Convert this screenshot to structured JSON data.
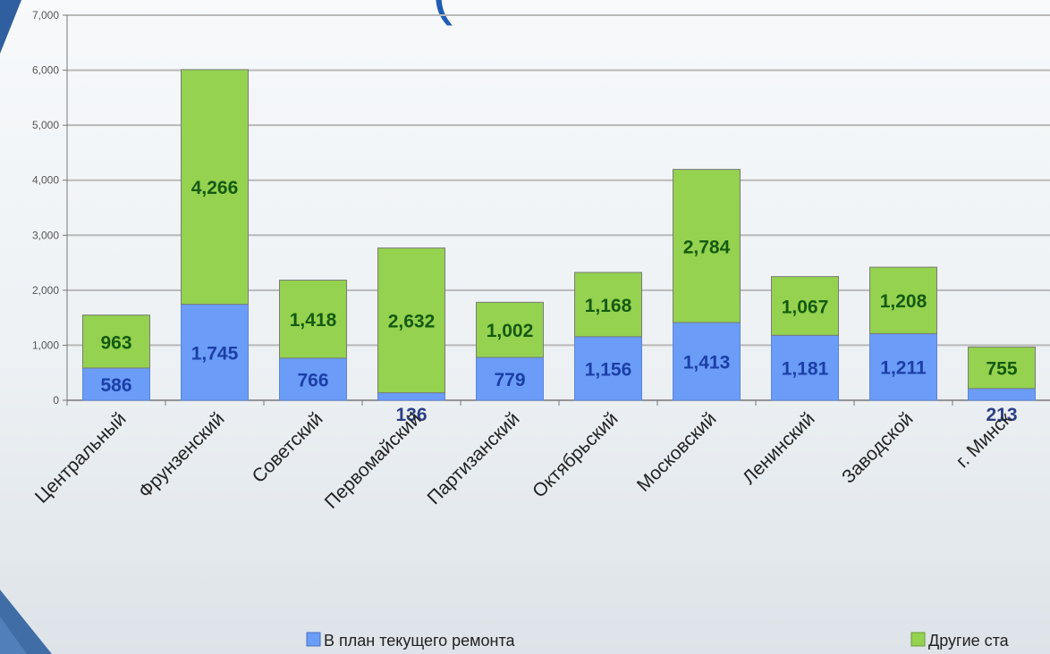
{
  "chart_data": {
    "type": "bar",
    "stacked": true,
    "categories": [
      "Центральный",
      "Фрунзенский",
      "Советский",
      "Первомайский",
      "Партизанский",
      "Октябрьский",
      "Московский",
      "Ленинский",
      "Заводской",
      "г. Минск"
    ],
    "series": [
      {
        "name": "В план текущего ремонта",
        "color": "#6b9cf7",
        "values": [
          586,
          1745,
          766,
          136,
          779,
          1156,
          1413,
          1181,
          1211,
          213
        ]
      },
      {
        "name": "Другие ста",
        "color": "#94d250",
        "values": [
          963,
          4266,
          1418,
          2632,
          1002,
          1168,
          2784,
          1067,
          1208,
          755
        ]
      }
    ],
    "ylim": [
      0,
      7000
    ],
    "yticks": [
      0,
      1000,
      2000,
      3000,
      4000,
      5000,
      6000,
      7000
    ],
    "ytick_labels": [
      "0",
      "1,000",
      "2,000",
      "3,000",
      "4,000",
      "5,000",
      "6,000",
      "7,000"
    ],
    "data_labels": {
      "series0": [
        "586",
        "1,745",
        "766",
        "136",
        "779",
        "1,156",
        "1,413",
        "1,181",
        "1,211",
        "213"
      ],
      "series1": [
        "963",
        "4,266",
        "1,418",
        "2,632",
        "1,002",
        "1,168",
        "2,784",
        "1,067",
        "1,208",
        "755"
      ]
    },
    "grid": true,
    "legend_position": "bottom"
  },
  "colors": {
    "series0_fill": "#6b9cf7",
    "series1_fill": "#94d250",
    "axis": "#777777",
    "grid": "#b8b8b8",
    "corner_ribbon": "#2f5f9e"
  },
  "decorations": {
    "ribbon": "blue-corner-ribbon",
    "title_fragment": "("
  }
}
